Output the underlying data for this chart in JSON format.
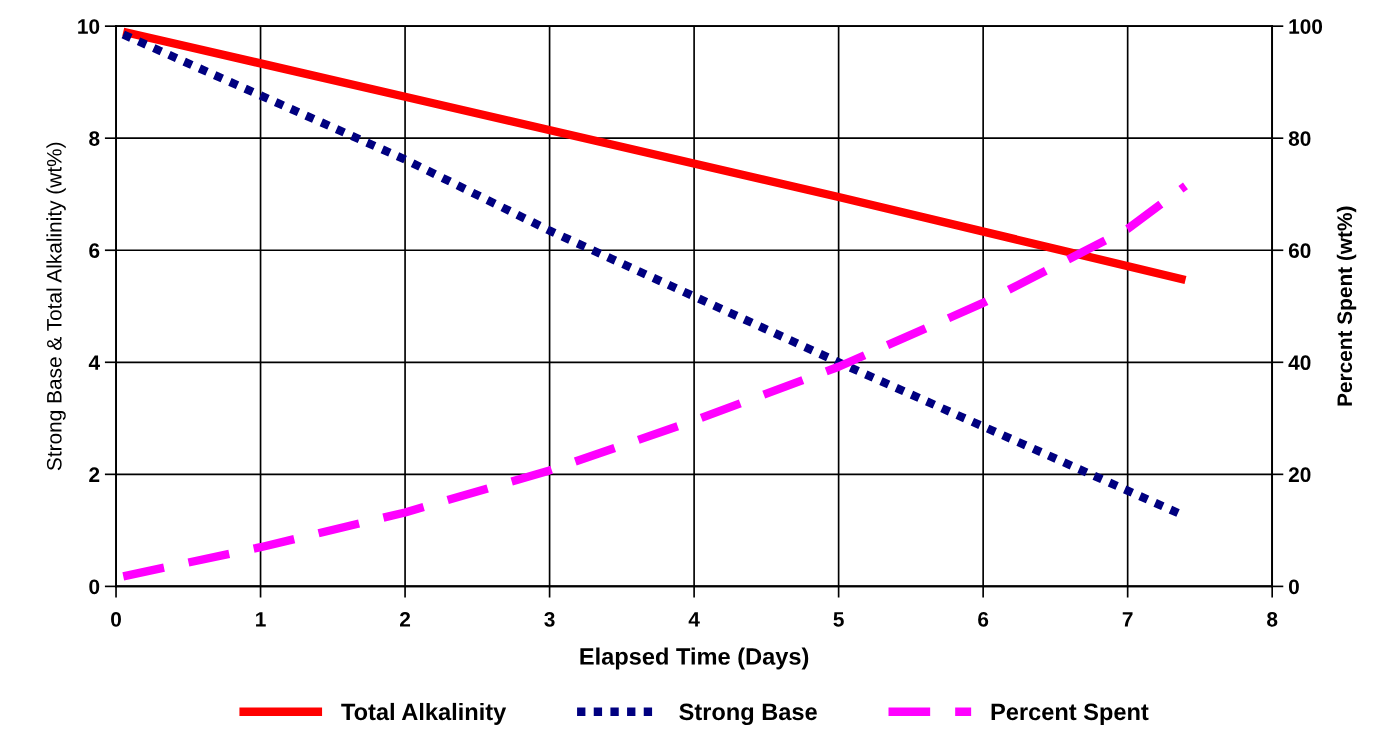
{
  "chart_data": {
    "type": "line",
    "xlabel": "Elapsed Time (Days)",
    "ylabel": "Strong Base & Total Alkalinity (wt%)",
    "y2label": "Percent Spent (wt%)",
    "xlim": [
      0,
      8
    ],
    "xticks": [
      0,
      1,
      2,
      3,
      4,
      5,
      6,
      7,
      8
    ],
    "ylim": [
      0,
      10
    ],
    "yticks": [
      0,
      2,
      4,
      6,
      8,
      10
    ],
    "y2lim": [
      0,
      100
    ],
    "y2ticks": [
      0,
      20,
      40,
      60,
      80,
      100
    ],
    "grid": true,
    "legend": "bottom",
    "marker": "none",
    "series": [
      {
        "name": "Total Alkalinity",
        "color": "#ff0000",
        "line_style": "solid",
        "x": [
          0.05,
          2,
          5,
          7.4
        ],
        "values": [
          9.9,
          8.74,
          6.95,
          5.47
        ]
      },
      {
        "name": "Strong Base",
        "color": "#000080",
        "line_style": "dotted",
        "x": [
          0.05,
          2,
          3,
          5,
          7.4
        ],
        "values": [
          9.85,
          7.62,
          6.35,
          4.0,
          1.25
        ]
      },
      {
        "name": "Percent Spent",
        "color": "#ff00ff",
        "line_style": "dashed",
        "axis": "y2",
        "x": [
          0.05,
          1,
          2,
          3,
          4,
          5,
          6,
          7,
          7.4
        ],
        "values": [
          1.8,
          7.0,
          13.2,
          20.7,
          29.6,
          39.2,
          50.6,
          63.8,
          71.5
        ]
      }
    ]
  }
}
